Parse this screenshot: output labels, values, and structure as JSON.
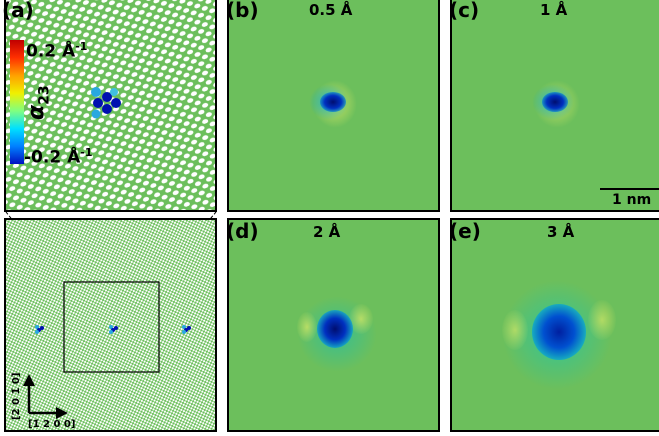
{
  "panels": {
    "a": {
      "label": "(a)"
    },
    "b": {
      "label": "(b)",
      "title": "0.5 Å"
    },
    "c": {
      "label": "(c)",
      "title": "1 Å"
    },
    "d": {
      "label": "(d)",
      "title": "2 Å"
    },
    "e": {
      "label": "(e)",
      "title": "3 Å"
    }
  },
  "colorbar": {
    "max_label": "0.2 Å",
    "max_exp": "-1",
    "min_label": "-0.2 Å",
    "min_exp": "-1",
    "symbol": "α",
    "symbol_sub": "23",
    "colors": [
      "#c00000",
      "#ff3000",
      "#ffa000",
      "#f0f000",
      "#80ff80",
      "#00e0ff",
      "#0080ff",
      "#0010c0"
    ]
  },
  "scalebar": {
    "label": "1 nm"
  },
  "axes": {
    "vertical": "[2 0 1̄ 0]",
    "horizontal": "[1̄ 2 0 0]"
  },
  "colors": {
    "background_green": "#6cbf5c",
    "lattice_white": "#ffffff"
  }
}
